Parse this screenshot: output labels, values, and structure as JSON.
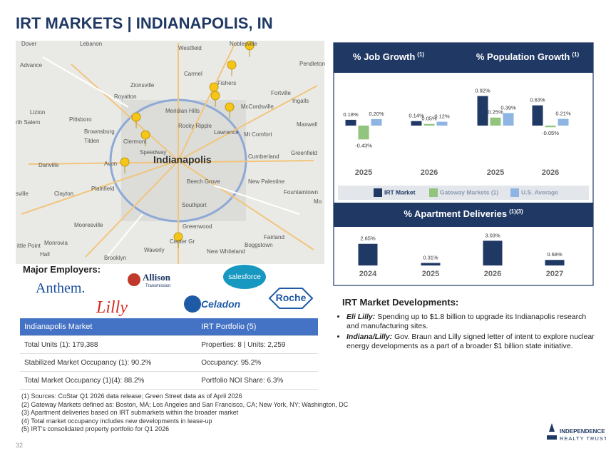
{
  "header": {
    "title": "IRT MARKETS | INDIANAPOLIS, IN"
  },
  "map": {
    "labels": [
      "Dover",
      "Lebanon",
      "Westfield",
      "Noblesville",
      "Advance",
      "Pendleton",
      "Carmel",
      "Fishers",
      "Zionsville",
      "Royalton",
      "Ingalls",
      "Fortville",
      "Meridian Hills",
      "McCordsville",
      "Lizton",
      "Pittsboro",
      "rth Salem",
      "Brownsburg",
      "Rocky Ripple",
      "Maxwell",
      "Lawrence",
      "Mt Comfort",
      "Tilden",
      "Clermont",
      "Speedway",
      "Indianapolis",
      "Cumberland",
      "Greenfield",
      "Danville",
      "Avon",
      "Beech Grove",
      "New Palestine",
      "Plainfield",
      "Clayton",
      "sville",
      "Fountaintown",
      "Southport",
      "Mooresville",
      "Greenwood",
      "Monrovia",
      "Fairland",
      "Center Gr",
      "Waverly",
      "New Whiteland",
      "Boggstown",
      "ittle Point",
      "Hall",
      "Brooklyn",
      "Mo"
    ]
  },
  "chart_data": [
    {
      "type": "bar",
      "title": "% Job Growth",
      "title_note": "(1)",
      "categories": [
        "2025",
        "2026"
      ],
      "ylim": [
        -0.5,
        1.0
      ],
      "series": [
        {
          "name": "IRT Market",
          "color": "#1f3864",
          "values": [
            0.18,
            0.14
          ],
          "value_labels": [
            "0.18%",
            "0.14%"
          ]
        },
        {
          "name": "Gateway Markets (1)",
          "color": "#92c47d",
          "values": [
            -0.43,
            0.05
          ],
          "value_labels": [
            "-0.43%",
            "0.05%"
          ]
        },
        {
          "name": "U.S. Average",
          "color": "#8db4e2",
          "values": [
            0.2,
            0.12
          ],
          "value_labels": [
            "0.20%",
            "0.12%"
          ]
        }
      ]
    },
    {
      "type": "bar",
      "title": "% Population Growth",
      "title_note": "(1)",
      "categories": [
        "2025",
        "2026"
      ],
      "ylim": [
        -0.5,
        1.0
      ],
      "series": [
        {
          "color": "#1f3864",
          "values": [
            0.92,
            0.63
          ],
          "value_labels": [
            "0.92%",
            "0.63%"
          ]
        },
        {
          "color": "#92c47d",
          "values": [
            0.25,
            -0.05
          ],
          "value_labels": [
            "0.25%",
            "-0.05%"
          ]
        },
        {
          "color": "#8db4e2",
          "values": [
            0.39,
            0.21
          ],
          "value_labels": [
            "0.39%",
            "0.21%"
          ]
        }
      ]
    },
    {
      "type": "bar",
      "title": "% Apartment Deliveries",
      "title_note": "(1)(3)",
      "categories": [
        "2024",
        "2025",
        "2026",
        "2027"
      ],
      "ylim": [
        0,
        3.5
      ],
      "color": "#1f3864",
      "values": [
        2.65,
        0.31,
        3.03,
        0.68
      ],
      "value_labels": [
        "2.65%",
        "0.31%",
        "3.03%",
        "0.68%"
      ]
    }
  ],
  "employers": {
    "title": "Major Employers:",
    "names": [
      "Anthem.",
      "Allison",
      "Transmission",
      "salesforce",
      "Lilly",
      "Celadon",
      "Roche"
    ]
  },
  "table": {
    "header": [
      "Indianapolis Market",
      "IRT Portfolio (5)"
    ],
    "rows": [
      [
        "Total Units (1): 179,388",
        "Properties: 8 | Units: 2,259"
      ],
      [
        "Stabilized Market Occupancy (1): 90.2%",
        "Occupancy: 95.2%"
      ],
      [
        "Total Market Occupancy (1)(4): 88.2%",
        "Portfolio NOI Share: 6.3%"
      ]
    ]
  },
  "developments": {
    "title": "IRT Market Developments:",
    "items": [
      {
        "lead": "Eli Lilly:",
        "text": "Spending up to $1.8 billion to upgrade its Indianapolis research and manufacturing sites."
      },
      {
        "lead": "Indiana/Lilly:",
        "text": "Gov. Braun and Lilly signed letter of intent to explore nuclear energy developments as a part of a broader $1 billion state initiative."
      }
    ]
  },
  "footnotes": [
    "(1) Sources: CoStar Q1 2026 data release; Green Street data as of April 2026",
    "(2) Gateway Markets defined as: Boston, MA; Los Angeles and San Francisco, CA; New York, NY; Washington, DC",
    "(3) Apartment deliveries based on IRT submarkets within the broader market",
    "(4) Total market occupancy includes new developments in lease-up",
    "(5) IRT's consolidated property portfolio for Q1 2026"
  ],
  "footer": {
    "page": "32",
    "logo_line1": "INDEPENDENCE",
    "logo_line2": "REALTY TRUST"
  }
}
